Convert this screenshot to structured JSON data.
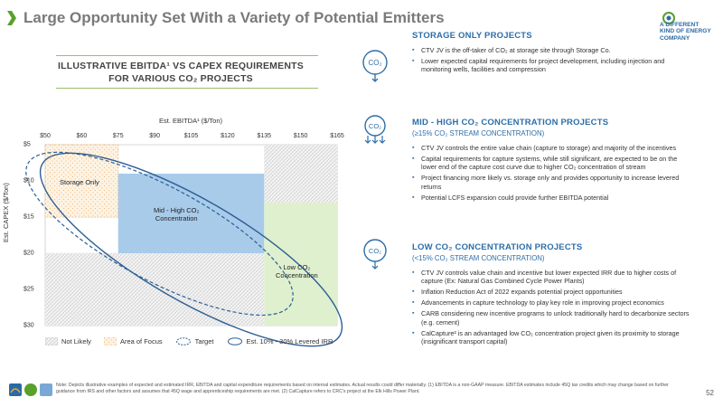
{
  "page": {
    "title": "Large Opportunity Set With a Variety of Potential Emitters",
    "page_number": "52",
    "logo_lines": [
      "A DIFFERENT",
      "KIND OF ENERGY",
      "COMPANY"
    ],
    "accent_color": "#5aa02c",
    "primary_blue": "#2d6ea8"
  },
  "chart": {
    "title_line1": "ILLUSTRATIVE EBITDA¹ VS CAPEX REQUIREMENTS",
    "title_line2": "FOR VARIOUS CO₂ PROJECTS",
    "x_axis_title": "Est. EBITDA¹ ($/Ton)",
    "y_axis_title": "Est. CAPEX ($/Ton)",
    "regions": {
      "storage_only": "Storage Only",
      "mid_high_line1": "Mid - High CO₂",
      "mid_high_line2": "Concentration",
      "low_line1": "Low CO₂",
      "low_line2": "Concentration"
    },
    "legend": {
      "not_likely": "Not Likely",
      "area_of_focus": "Area of Focus",
      "target": "Target",
      "levered_irr": "Est. 10% - 30% Levered IRR"
    }
  },
  "chart_data": {
    "type": "heatmap",
    "xlabel": "Est. EBITDA¹ ($/Ton)",
    "ylabel": "Est. CAPEX ($/Ton)",
    "x_ticks": [
      "$50",
      "$60",
      "$75",
      "$90",
      "$105",
      "$120",
      "$135",
      "$150",
      "$165"
    ],
    "y_ticks": [
      "$5",
      "$10",
      "$15",
      "$20",
      "$25",
      "$30"
    ],
    "x_values": [
      50,
      60,
      75,
      90,
      105,
      120,
      135,
      150,
      165
    ],
    "y_values": [
      5,
      10,
      15,
      20,
      25,
      30
    ],
    "xlim": [
      50,
      165
    ],
    "ylim": [
      5,
      30
    ],
    "y_inverted": true,
    "regions": [
      {
        "name": "Storage Only",
        "x": [
          50,
          75
        ],
        "y": [
          5,
          15
        ],
        "style": "area-of-focus"
      },
      {
        "name": "Mid - High CO₂ Concentration",
        "x": [
          75,
          135
        ],
        "y": [
          9,
          20
        ],
        "style": "filled-blue"
      },
      {
        "name": "Low CO₂ Concentration",
        "x": [
          135,
          165
        ],
        "y": [
          13,
          30
        ],
        "style": "filled-green"
      },
      {
        "name": "Not Likely",
        "x": [
          135,
          165
        ],
        "y": [
          5,
          13
        ],
        "style": "hatched"
      },
      {
        "name": "Not Likely",
        "x": [
          50,
          135
        ],
        "y": [
          20,
          30
        ],
        "style": "hatched"
      }
    ]
  },
  "sections": [
    {
      "title": "STORAGE ONLY PROJECTS",
      "subtitle": "",
      "bullets": [
        "CTV JV is the off-taker of CO₂ at storage site through Storage Co.",
        "Lower expected capital requirements for project development, including injection and monitoring wells, facilities and compression"
      ]
    },
    {
      "title": "MID - HIGH CO₂ CONCENTRATION PROJECTS",
      "subtitle": "(≥15% CO₂ STREAM CONCENTRATION)",
      "bullets": [
        "CTV JV controls the entire value chain (capture to storage) and majority of the incentives",
        "Capital requirements for capture systems, while still significant, are expected to be on the lower end of the capture cost curve due to higher CO₂ concentration of stream",
        "Project financing more likely vs. storage only and provides opportunity to increase levered returns",
        "Potential LCFS expansion could provide further EBITDA potential"
      ]
    },
    {
      "title": "LOW CO₂ CONCENTRATION PROJECTS",
      "subtitle": "(<15% CO₂ STREAM CONCENTRATION)",
      "bullets": [
        "CTV JV controls value chain and incentive but lower expected IRR due to higher costs of capture (Ex: Natural Gas Combined Cycle Power Plants)",
        "Inflation Reduction Act of 2022 expands potential project opportunities",
        "Advancements in capture technology to play key role in improving project economics",
        "CARB considering new incentive programs to unlock traditionally hard to decarbonize sectors (e.g. cement)",
        "CalCapture² is an advantaged low CO₂ concentration project given its proximity to storage (insignificant transport capital)"
      ]
    }
  ],
  "icon_label": "CO₂",
  "footer": {
    "note": "Note: Depicts illustrative examples of expected and estimated IRR, EBITDA and capital expenditure requirements based on internal estimates. Actual results could differ materially. (1) EBITDA is a non-GAAP measure. EBITDA estimates include 45Q tax credits which may change based on further guidance from IRS and other factors and assumes that 45Q wage and apprenticeship requirements are met. (2) CalCapture refers to CRC's project at the Elk Hills Power Plant."
  }
}
